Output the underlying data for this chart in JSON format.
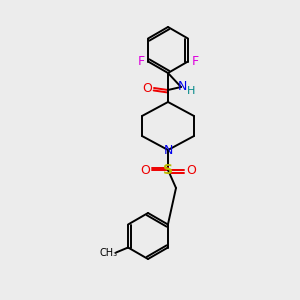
{
  "background_color": "#ececec",
  "atom_colors": {
    "C": "#000000",
    "N": "#0000ee",
    "O": "#ee0000",
    "F": "#dd00dd",
    "S": "#bbbb00",
    "H": "#008888"
  },
  "figsize": [
    3.0,
    3.0
  ],
  "dpi": 100
}
